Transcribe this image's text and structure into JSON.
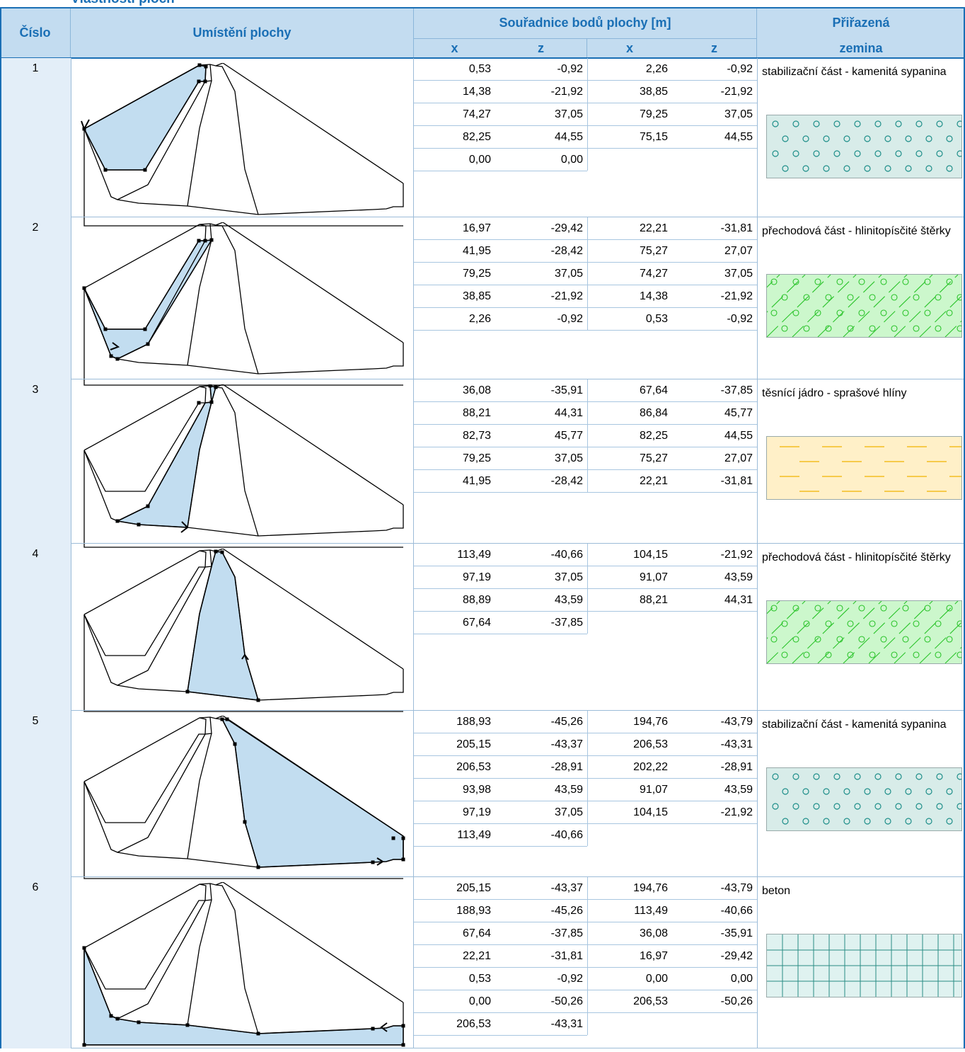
{
  "title": "Vlastnosti ploch",
  "headers": {
    "cislo": "Číslo",
    "umisteni": "Umístění plochy",
    "souradnice": "Souřadnice bodů plochy [m]",
    "x1": "x",
    "z1": "z",
    "x2": "x",
    "z2": "z",
    "prirazena": "Přiřazená",
    "zemina": "zemina"
  },
  "rows": [
    {
      "id": "1",
      "coords": [
        [
          "0,53",
          "-0,92",
          "2,26",
          "-0,92"
        ],
        [
          "14,38",
          "-21,92",
          "38,85",
          "-21,92"
        ],
        [
          "74,27",
          "37,05",
          "79,25",
          "37,05"
        ],
        [
          "82,25",
          "44,55",
          "75,15",
          "44,55"
        ],
        [
          "0,00",
          "0,00",
          "",
          ""
        ]
      ],
      "soil": "stabilizační část - kamenitá sypanina",
      "pattern": "circles-blue"
    },
    {
      "id": "2",
      "coords": [
        [
          "16,97",
          "-29,42",
          "22,21",
          "-31,81"
        ],
        [
          "41,95",
          "-28,42",
          "75,27",
          "27,07"
        ],
        [
          "79,25",
          "37,05",
          "74,27",
          "37,05"
        ],
        [
          "38,85",
          "-21,92",
          "14,38",
          "-21,92"
        ],
        [
          "2,26",
          "-0,92",
          "0,53",
          "-0,92"
        ]
      ],
      "soil": "přechodová část - hlinitopísčité štěrky",
      "pattern": "gravel-green"
    },
    {
      "id": "3",
      "coords": [
        [
          "36,08",
          "-35,91",
          "67,64",
          "-37,85"
        ],
        [
          "88,21",
          "44,31",
          "86,84",
          "45,77"
        ],
        [
          "82,73",
          "45,77",
          "82,25",
          "44,55"
        ],
        [
          "79,25",
          "37,05",
          "75,27",
          "27,07"
        ],
        [
          "41,95",
          "-28,42",
          "22,21",
          "-31,81"
        ]
      ],
      "soil": "těsnící jádro - sprašové hlíny",
      "pattern": "dashes-yellow"
    },
    {
      "id": "4",
      "coords": [
        [
          "113,49",
          "-40,66",
          "104,15",
          "-21,92"
        ],
        [
          "97,19",
          "37,05",
          "91,07",
          "43,59"
        ],
        [
          "88,89",
          "43,59",
          "88,21",
          "44,31"
        ],
        [
          "67,64",
          "-37,85",
          "",
          ""
        ]
      ],
      "soil": "přechodová část - hlinitopísčité štěrky",
      "pattern": "gravel-green"
    },
    {
      "id": "5",
      "coords": [
        [
          "188,93",
          "-45,26",
          "194,76",
          "-43,79"
        ],
        [
          "205,15",
          "-43,37",
          "206,53",
          "-43,31"
        ],
        [
          "206,53",
          "-28,91",
          "202,22",
          "-28,91"
        ],
        [
          "93,98",
          "43,59",
          "91,07",
          "43,59"
        ],
        [
          "97,19",
          "37,05",
          "104,15",
          "-21,92"
        ],
        [
          "113,49",
          "-40,66",
          "",
          ""
        ]
      ],
      "soil": "stabilizační část - kamenitá sypanina",
      "pattern": "circles-blue"
    },
    {
      "id": "6",
      "coords": [
        [
          "205,15",
          "-43,37",
          "194,76",
          "-43,79"
        ],
        [
          "188,93",
          "-45,26",
          "113,49",
          "-40,66"
        ],
        [
          "67,64",
          "-37,85",
          "36,08",
          "-35,91"
        ],
        [
          "22,21",
          "-31,81",
          "16,97",
          "-29,42"
        ],
        [
          "0,53",
          "-0,92",
          "0,00",
          "0,00"
        ],
        [
          "0,00",
          "-50,26",
          "206,53",
          "-50,26"
        ],
        [
          "206,53",
          "-43,31",
          "",
          ""
        ]
      ],
      "soil": "beton",
      "pattern": "grid-teal"
    }
  ],
  "colors": {
    "header_bg": "#c3dcf0",
    "header_text": "#1a6fb5",
    "highlight": "#c2ddf0",
    "cislo_bg": "#e3eef8"
  }
}
